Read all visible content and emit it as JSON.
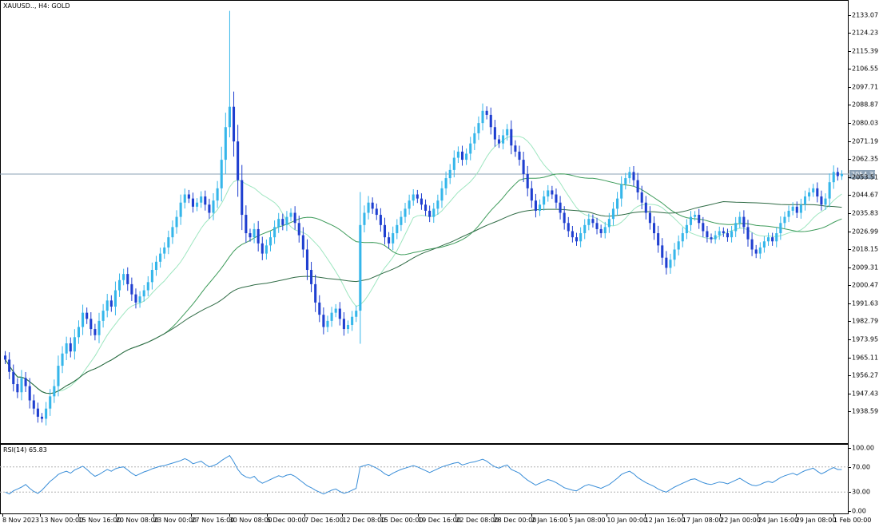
{
  "main_title": "XAUUSD.., H4:  GOLD",
  "rsi_title": "RSI(14) 65.83",
  "current_price": "2054.37",
  "colors": {
    "candle": "#1f3fd0",
    "candle_up": "#35b6ea",
    "ma_fast": "#9ee6c0",
    "ma_mid": "#3d9b5a",
    "ma_slow": "#2f6b45",
    "rsi": "#3a8ed8",
    "price_line": "#8ba0b4"
  },
  "chart_data": [
    {
      "type": "candlestick",
      "title": "XAUUSD.., H4:  GOLD",
      "ylim": [
        1925,
        2138
      ],
      "y_ticks": [
        "2133.07",
        "2124.23",
        "2115.39",
        "2106.55",
        "2097.71",
        "2088.87",
        "2080.03",
        "2071.19",
        "2062.35",
        "2053.51",
        "2044.67",
        "2035.83",
        "2026.99",
        "2018.15",
        "2009.31",
        "2000.47",
        "1991.63",
        "1982.79",
        "1973.95",
        "1965.11",
        "1956.27",
        "1947.43",
        "1938.59"
      ],
      "x_labels": [
        "8 Nov 2023",
        "13 Nov 00:00",
        "15 Nov 16:00",
        "20 Nov 08:00",
        "23 Nov 00:00",
        "27 Nov 16:00",
        "30 Nov 08:00",
        "5 Dec 00:00",
        "7 Dec 16:00",
        "12 Dec 08:00",
        "15 Dec 00:00",
        "19 Dec 16:00",
        "22 Dec 08:00",
        "28 Dec 00:00",
        "2 Jan 16:00",
        "5 Jan 08:00",
        "10 Jan 00:00",
        "12 Jan 16:00",
        "17 Jan 08:00",
        "22 Jan 00:00",
        "24 Jan 16:00",
        "29 Jan 08:00",
        "1 Feb 00:00"
      ],
      "close": [
        1964,
        1958,
        1952,
        1948,
        1955,
        1951,
        1944,
        1940,
        1936,
        1935,
        1940,
        1946,
        1951,
        1961,
        1967,
        1972,
        1968,
        1975,
        1980,
        1987,
        1984,
        1979,
        1976,
        1983,
        1988,
        1993,
        1990,
        1998,
        2003,
        2006,
        2001,
        1996,
        1992,
        1995,
        1998,
        2002,
        2008,
        2012,
        2016,
        2019,
        2024,
        2029,
        2034,
        2041,
        2045,
        2043,
        2039,
        2041,
        2044,
        2040,
        2036,
        2042,
        2048,
        2062,
        2078,
        2088,
        2071,
        2052,
        2035,
        2026,
        2024,
        2028,
        2021,
        2016,
        2020,
        2024,
        2029,
        2033,
        2030,
        2034,
        2036,
        2031,
        2025,
        2018,
        2008,
        2001,
        1992,
        1986,
        1980,
        1983,
        1987,
        1989,
        1984,
        1979,
        1981,
        1985,
        1988,
        2030,
        2036,
        2041,
        2038,
        2035,
        2030,
        2024,
        2021,
        2026,
        2030,
        2034,
        2038,
        2042,
        2045,
        2043,
        2040,
        2037,
        2034,
        2038,
        2042,
        2048,
        2053,
        2057,
        2063,
        2066,
        2062,
        2065,
        2070,
        2075,
        2080,
        2086,
        2084,
        2078,
        2072,
        2070,
        2074,
        2077,
        2069,
        2066,
        2062,
        2055,
        2048,
        2042,
        2037,
        2040,
        2044,
        2047,
        2045,
        2041,
        2036,
        2031,
        2027,
        2024,
        2022,
        2026,
        2030,
        2033,
        2031,
        2028,
        2026,
        2029,
        2033,
        2038,
        2043,
        2050,
        2053,
        2056,
        2052,
        2046,
        2041,
        2036,
        2031,
        2026,
        2020,
        2014,
        2009,
        2013,
        2018,
        2022,
        2026,
        2030,
        2034,
        2035,
        2031,
        2027,
        2024,
        2023,
        2025,
        2027,
        2026,
        2024,
        2027,
        2031,
        2034,
        2029,
        2023,
        2018,
        2016,
        2019,
        2022,
        2024,
        2022,
        2026,
        2031,
        2034,
        2037,
        2039,
        2036,
        2040,
        2044,
        2046,
        2048,
        2044,
        2040,
        2043,
        2051,
        2056,
        2054,
        2055
      ]
    },
    {
      "type": "line",
      "title": "RSI(14) 65.83",
      "ylim": [
        0,
        100
      ],
      "y_ticks": [
        "100.00",
        "70.00",
        "30.00",
        "0.00"
      ],
      "levels": [
        70,
        30
      ],
      "values": [
        30,
        27,
        32,
        35,
        38,
        42,
        36,
        31,
        28,
        33,
        40,
        47,
        52,
        58,
        61,
        63,
        60,
        65,
        68,
        71,
        66,
        60,
        55,
        58,
        62,
        66,
        63,
        67,
        69,
        70,
        65,
        60,
        56,
        59,
        62,
        64,
        67,
        69,
        71,
        72,
        74,
        76,
        78,
        80,
        83,
        80,
        75,
        77,
        79,
        74,
        70,
        72,
        75,
        80,
        84,
        88,
        78,
        66,
        58,
        54,
        52,
        55,
        48,
        44,
        47,
        50,
        53,
        56,
        54,
        57,
        58,
        55,
        50,
        45,
        40,
        37,
        33,
        30,
        27,
        30,
        33,
        35,
        31,
        28,
        30,
        33,
        36,
        70,
        72,
        74,
        71,
        68,
        64,
        59,
        56,
        60,
        63,
        66,
        68,
        70,
        72,
        70,
        67,
        64,
        61,
        64,
        67,
        70,
        72,
        74,
        76,
        77,
        73,
        75,
        77,
        78,
        80,
        82,
        79,
        74,
        70,
        68,
        71,
        73,
        66,
        63,
        60,
        54,
        49,
        45,
        41,
        44,
        47,
        50,
        48,
        45,
        41,
        37,
        35,
        33,
        32,
        36,
        40,
        42,
        40,
        38,
        36,
        39,
        42,
        47,
        52,
        58,
        61,
        63,
        59,
        53,
        49,
        45,
        42,
        39,
        35,
        32,
        30,
        34,
        38,
        41,
        44,
        47,
        50,
        51,
        48,
        45,
        43,
        42,
        44,
        46,
        45,
        43,
        46,
        49,
        52,
        48,
        44,
        41,
        40,
        42,
        45,
        47,
        45,
        49,
        53,
        56,
        58,
        60,
        57,
        61,
        64,
        66,
        68,
        63,
        59,
        62,
        66,
        69,
        65.83,
        65.83
      ]
    }
  ]
}
